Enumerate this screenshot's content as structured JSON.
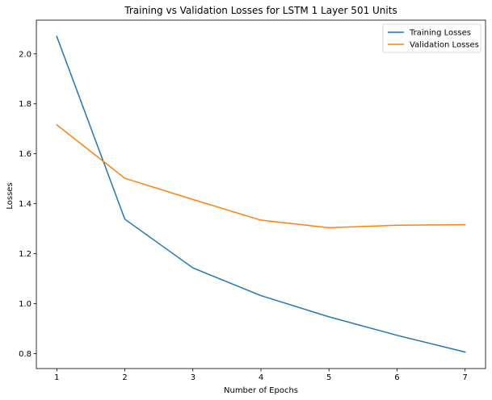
{
  "chart_data": {
    "type": "line",
    "title": "Training vs Validation Losses for LSTM 1 Layer 501 Units",
    "xlabel": "Number of Epochs",
    "ylabel": "Losses",
    "x": [
      1,
      2,
      3,
      4,
      5,
      6,
      7
    ],
    "xticks": [
      "1",
      "2",
      "3",
      "4",
      "5",
      "6",
      "7"
    ],
    "yticks": [
      "0.8",
      "1.0",
      "1.2",
      "1.4",
      "1.6",
      "1.8",
      "2.0"
    ],
    "ytick_values": [
      0.8,
      1.0,
      1.2,
      1.4,
      1.6,
      1.8,
      2.0
    ],
    "xlim": [
      0.7,
      7.3
    ],
    "ylim": [
      0.74,
      2.135
    ],
    "grid": false,
    "legend_position": "top-right",
    "series": [
      {
        "name": "Training Losses",
        "color": "#1f77b4",
        "values": [
          2.07,
          1.338,
          1.143,
          1.032,
          0.947,
          0.873,
          0.806
        ]
      },
      {
        "name": "Validation Losses",
        "color": "#ff7f0e",
        "values": [
          1.716,
          1.502,
          1.417,
          1.334,
          1.304,
          1.314,
          1.316
        ]
      }
    ]
  }
}
